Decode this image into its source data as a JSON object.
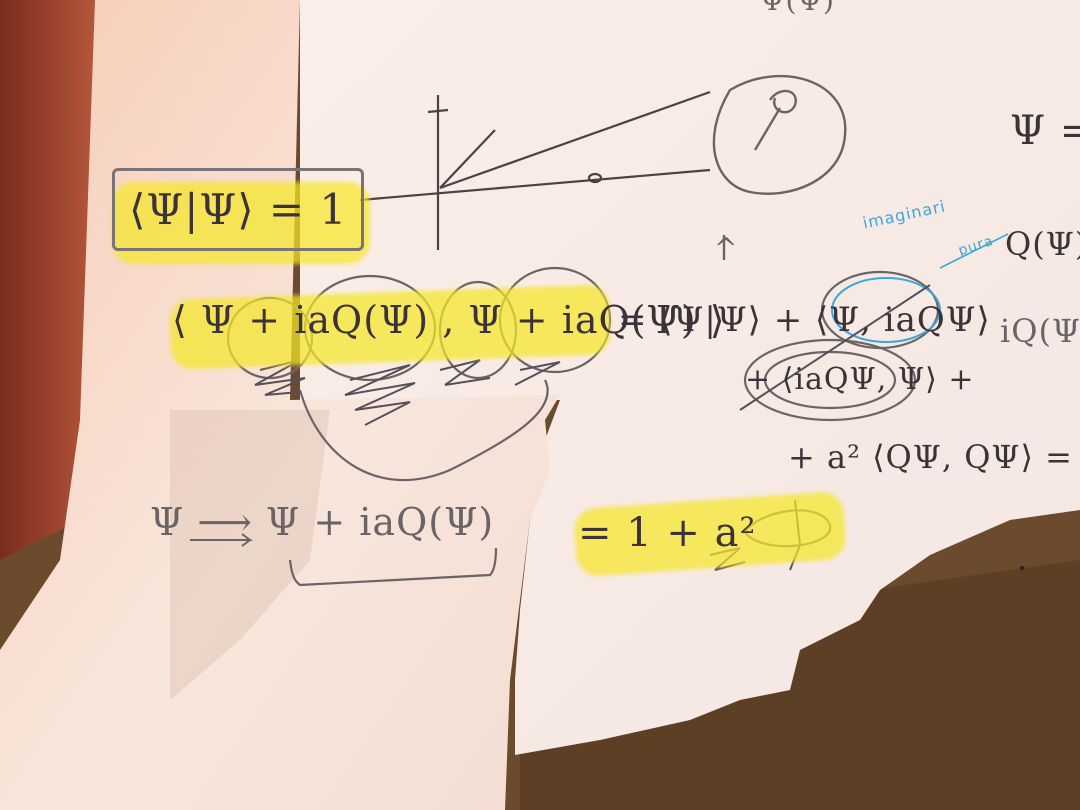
{
  "photo": {
    "subject": "handwritten notes on torn paper",
    "ink_color": "#3b3338",
    "highlighter_color": "#f5e628",
    "annotation_color": "#3aa8d8",
    "paper_color": "#f6ece6",
    "background_color": "#6b4a2e"
  },
  "notes": {
    "top_clipped": "Ψ(Ψ)",
    "norm_box": "⟨Ψ|Ψ⟩ = 1",
    "expansion_lhs": "⟨ Ψ + iaQ(Ψ) , Ψ + iaQ(Ψ) ⟩",
    "expansion_rhs": "= ⟨Ψ|Ψ⟩ + ⟨Ψ, iaQΨ⟩",
    "cross_term": "+ ⟨iaQΨ, Ψ⟩ +",
    "quad_term": "+ a² ⟨QΨ, QΨ⟩ =",
    "result": "= 1 + a²",
    "transform": "Ψ ⟶ Ψ + iaQ(Ψ)",
    "margin_psi": "Ψ = −",
    "margin_q": "Q(Ψ) =",
    "margin_iq": "iQ(Ψ)",
    "annotation_word_1": "imaginari",
    "annotation_word_2": "pura",
    "tick": "^"
  }
}
